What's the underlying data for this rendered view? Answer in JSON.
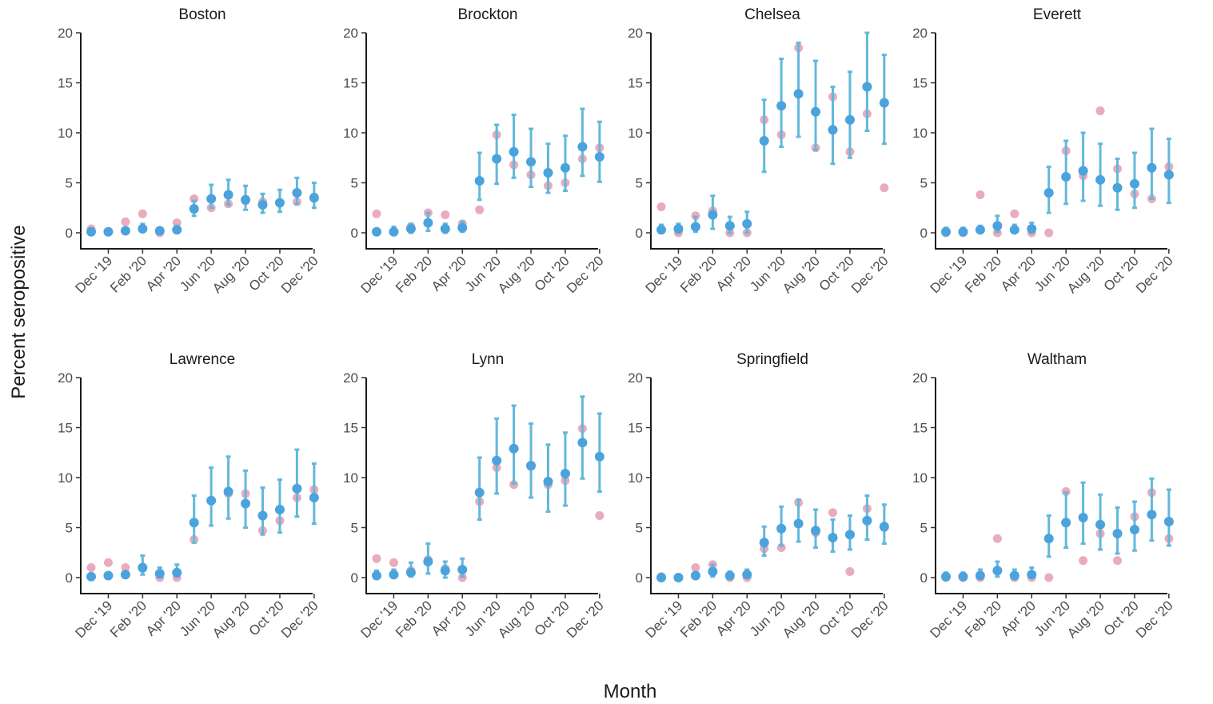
{
  "chart_data": {
    "type": "scatter",
    "title": "",
    "xlabel": "Month",
    "ylabel": "Percent seropositive",
    "ylim": [
      0,
      20
    ],
    "y_ticks": [
      "0",
      "5",
      "10",
      "15",
      "20"
    ],
    "x_tick_labels": [
      "Dec '19",
      "Feb '20",
      "Apr '20",
      "Jun '20",
      "Aug '20",
      "Oct '20",
      "Dec '20"
    ],
    "x_tick_months": [
      "2019-12",
      "2020-02",
      "2020-04",
      "2020-06",
      "2020-08",
      "2020-10",
      "2020-12"
    ],
    "months": [
      "2019-11",
      "2019-12",
      "2020-01",
      "2020-02",
      "2020-03",
      "2020-04",
      "2020-05",
      "2020-06",
      "2020-07",
      "2020-08",
      "2020-09",
      "2020-10",
      "2020-11",
      "2020-12"
    ],
    "grid": false,
    "legend": "none",
    "colors": {
      "estimate": "#4aa3dc",
      "error_bar": "#63b8db",
      "raw": "#e8a2b6",
      "axis": "#1a1a1a"
    },
    "panels": [
      {
        "name": "Boston",
        "raw": [
          0.4,
          0.1,
          1.1,
          1.9,
          0.0,
          1.0,
          3.4,
          2.5,
          2.9,
          3.2,
          3.1,
          3.0,
          3.1,
          3.6
        ],
        "est": [
          0.1,
          0.1,
          0.2,
          0.4,
          0.2,
          0.3,
          2.4,
          3.4,
          3.8,
          3.3,
          2.8,
          3.0,
          4.0,
          3.5
        ],
        "low": [
          0.0,
          0.0,
          0.0,
          0.1,
          0.0,
          0.0,
          1.7,
          2.5,
          2.8,
          2.3,
          2.0,
          2.1,
          2.9,
          2.5
        ],
        "high": [
          0.4,
          0.4,
          0.5,
          0.9,
          0.5,
          0.7,
          3.2,
          4.8,
          5.3,
          4.7,
          3.9,
          4.3,
          5.5,
          5.0
        ]
      },
      {
        "name": "Brockton",
        "raw": [
          1.9,
          0.1,
          0.6,
          2.0,
          1.8,
          0.9,
          2.3,
          9.8,
          6.8,
          5.8,
          4.7,
          5.0,
          7.4,
          8.5
        ],
        "est": [
          0.1,
          0.1,
          0.4,
          1.0,
          0.4,
          0.5,
          5.2,
          7.4,
          8.1,
          7.1,
          6.0,
          6.5,
          8.6,
          7.6
        ],
        "low": [
          0.0,
          0.0,
          0.0,
          0.2,
          0.0,
          0.1,
          3.3,
          4.9,
          5.5,
          4.6,
          4.0,
          4.2,
          5.7,
          5.1
        ],
        "high": [
          0.4,
          0.6,
          0.9,
          2.0,
          0.9,
          1.1,
          8.0,
          10.8,
          11.8,
          10.4,
          8.9,
          9.7,
          12.4,
          11.1
        ]
      },
      {
        "name": "Chelsea",
        "raw": [
          2.6,
          0.0,
          1.7,
          2.2,
          0.0,
          0.0,
          11.3,
          9.8,
          18.5,
          8.5,
          13.6,
          8.1,
          11.9,
          4.5
        ],
        "est": [
          0.3,
          0.4,
          0.6,
          1.8,
          0.7,
          0.9,
          9.2,
          12.7,
          13.9,
          12.1,
          10.3,
          11.3,
          14.6,
          13.0
        ],
        "low": [
          0.0,
          0.0,
          0.1,
          0.4,
          0.0,
          0.0,
          6.1,
          8.6,
          9.6,
          8.3,
          6.9,
          7.5,
          10.2,
          8.9
        ],
        "high": [
          0.8,
          0.9,
          1.6,
          3.7,
          1.6,
          2.1,
          13.3,
          17.4,
          19.0,
          17.2,
          14.6,
          16.1,
          20.0,
          17.8
        ]
      },
      {
        "name": "Everett",
        "raw": [
          0.0,
          0.0,
          3.8,
          0.0,
          1.9,
          0.0,
          0.0,
          8.2,
          5.7,
          12.2,
          6.4,
          3.9,
          3.4,
          6.6
        ],
        "est": [
          0.1,
          0.1,
          0.3,
          0.7,
          0.3,
          0.4,
          4.0,
          5.6,
          6.2,
          5.3,
          4.5,
          4.9,
          6.5,
          5.8
        ],
        "low": [
          0.0,
          0.0,
          0.0,
          0.1,
          0.0,
          0.0,
          2.0,
          2.9,
          3.2,
          2.7,
          2.3,
          2.5,
          3.4,
          3.0
        ],
        "high": [
          0.5,
          0.5,
          0.7,
          1.7,
          0.8,
          1.0,
          6.6,
          9.2,
          10.0,
          8.9,
          7.4,
          8.0,
          10.4,
          9.4
        ]
      },
      {
        "name": "Lawrence",
        "raw": [
          1.0,
          1.5,
          1.0,
          0.9,
          0.0,
          0.0,
          3.8,
          7.7,
          8.4,
          8.4,
          4.7,
          5.7,
          8.0,
          8.8
        ],
        "est": [
          0.1,
          0.2,
          0.3,
          1.0,
          0.4,
          0.5,
          5.5,
          7.7,
          8.6,
          7.4,
          6.2,
          6.8,
          8.9,
          8.0
        ],
        "low": [
          0.0,
          0.0,
          0.0,
          0.3,
          0.0,
          0.1,
          3.5,
          5.2,
          5.9,
          5.0,
          4.3,
          4.5,
          6.1,
          5.4
        ],
        "high": [
          0.4,
          0.5,
          0.6,
          2.2,
          1.0,
          1.3,
          8.2,
          11.0,
          12.1,
          10.7,
          9.0,
          9.8,
          12.8,
          11.4
        ]
      },
      {
        "name": "Lynn",
        "raw": [
          1.9,
          1.5,
          0.7,
          1.8,
          0.9,
          0.0,
          7.6,
          11.0,
          9.3,
          11.1,
          9.3,
          9.7,
          14.9,
          6.2
        ],
        "est": [
          0.2,
          0.3,
          0.5,
          1.6,
          0.7,
          0.8,
          8.5,
          11.7,
          12.9,
          11.2,
          9.6,
          10.4,
          13.5,
          12.1
        ],
        "low": [
          0.0,
          0.0,
          0.1,
          0.4,
          0.0,
          0.1,
          5.8,
          8.4,
          9.4,
          8.0,
          6.6,
          7.2,
          9.9,
          8.6
        ],
        "high": [
          0.7,
          0.8,
          1.5,
          3.4,
          1.6,
          1.9,
          12.0,
          15.9,
          17.2,
          15.4,
          13.3,
          14.5,
          18.1,
          16.4
        ]
      },
      {
        "name": "Springfield",
        "raw": [
          0.1,
          0.0,
          1.0,
          1.3,
          0.0,
          0.0,
          2.9,
          3.0,
          7.5,
          4.5,
          6.5,
          0.6,
          6.9,
          5.0
        ],
        "est": [
          0.0,
          0.0,
          0.2,
          0.6,
          0.2,
          0.3,
          3.5,
          4.9,
          5.4,
          4.7,
          4.0,
          4.3,
          5.7,
          5.1
        ],
        "low": [
          0.0,
          0.0,
          0.0,
          0.1,
          0.0,
          0.0,
          2.2,
          3.2,
          3.6,
          3.0,
          2.6,
          2.8,
          3.8,
          3.4
        ],
        "high": [
          0.2,
          0.3,
          0.5,
          1.3,
          0.6,
          0.8,
          5.1,
          7.1,
          7.8,
          6.8,
          5.8,
          6.2,
          8.2,
          7.3
        ]
      },
      {
        "name": "Waltham",
        "raw": [
          0.0,
          0.0,
          0.0,
          3.9,
          0.0,
          0.0,
          0.0,
          8.6,
          1.7,
          4.4,
          1.7,
          6.1,
          8.5,
          3.9
        ],
        "est": [
          0.1,
          0.1,
          0.2,
          0.7,
          0.2,
          0.3,
          3.9,
          5.5,
          6.0,
          5.3,
          4.4,
          4.8,
          6.3,
          5.6
        ],
        "low": [
          0.0,
          0.0,
          0.0,
          0.1,
          0.0,
          0.0,
          2.1,
          3.0,
          3.4,
          2.8,
          2.4,
          2.7,
          3.7,
          3.2
        ],
        "high": [
          0.5,
          0.5,
          0.8,
          1.6,
          0.8,
          1.0,
          6.2,
          8.5,
          9.5,
          8.3,
          7.0,
          7.6,
          9.9,
          8.8
        ]
      }
    ]
  }
}
